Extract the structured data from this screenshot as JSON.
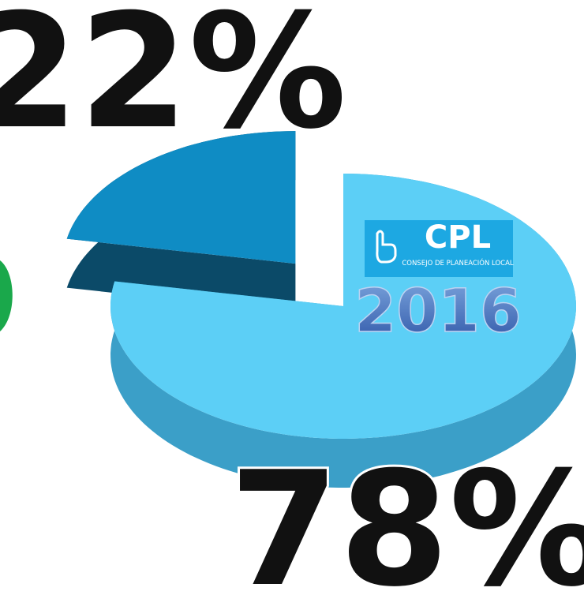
{
  "chart_data": {
    "type": "pie",
    "categories": [
      "22%",
      "78%"
    ],
    "values": [
      22,
      78
    ],
    "colors": [
      "#0f8cc4",
      "#5ccff6"
    ],
    "side_colors": [
      "#0b4a68",
      "#3b9fc8"
    ],
    "logo": {
      "name": "CPL",
      "subtitle": "CONSEJO DE PLANEACIÓN LOCAL",
      "year": "2016"
    }
  }
}
